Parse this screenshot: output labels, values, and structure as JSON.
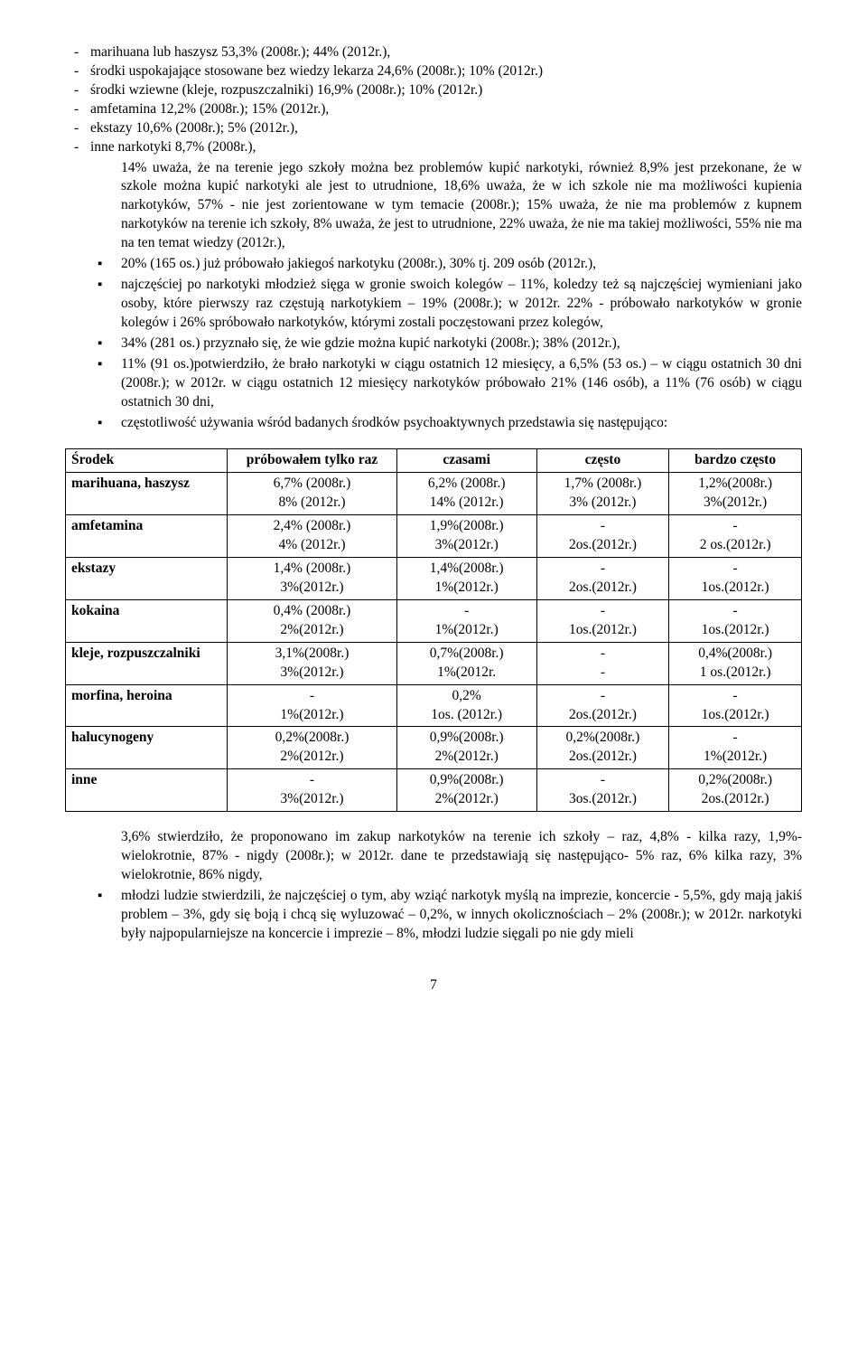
{
  "list1_sub": [
    "marihuana lub haszysz 53,3% (2008r.); 44% (2012r.),",
    "środki uspokajające stosowane bez wiedzy lekarza 24,6% (2008r.); 10% (2012r.)",
    "środki wziewne (kleje, rozpuszczalniki) 16,9% (2008r.); 10% (2012r.)",
    "amfetamina 12,2% (2008r.); 15% (2012r.),",
    "ekstazy 10,6% (2008r.); 5% (2012r.),",
    "inne narkotyki 8,7% (2008r.),"
  ],
  "list1_main": [
    "14% uważa, że na terenie jego szkoły można bez problemów kupić narkotyki, również 8,9% jest przekonane, że w szkole można kupić narkotyki ale jest to utrudnione, 18,6% uważa, że w ich szkole nie ma możliwości kupienia narkotyków, 57% - nie jest zorientowane w tym temacie (2008r.);  15% uważa, że nie ma problemów z kupnem narkotyków na terenie ich szkoły, 8% uważa, że jest to utrudnione, 22% uważa, że nie ma takiej możliwości, 55% nie ma na ten temat wiedzy (2012r.),",
    "20% (165 os.) już próbowało jakiegoś narkotyku (2008r.),  30% tj. 209 osób (2012r.),",
    "najczęściej po narkotyki młodzież sięga w gronie swoich kolegów – 11%, koledzy też są najczęściej wymieniani jako osoby, które pierwszy raz częstują narkotykiem – 19% (2008r.); w 2012r. 22% - próbowało narkotyków w gronie kolegów i 26% spróbowało narkotyków, którymi zostali poczęstowani przez kolegów,",
    "34% (281 os.) przyznało się, że wie gdzie można kupić narkotyki (2008r.); 38% (2012r.),",
    "11% (91 os.)potwierdziło, że brało narkotyki w ciągu ostatnich 12 miesięcy, a 6,5% (53 os.) – w ciągu ostatnich 30 dni (2008r.); w 2012r. w ciągu ostatnich 12 miesięcy narkotyków próbowało 21% (146 osób), a 11% (76 osób) w ciągu ostatnich 30 dni,",
    "częstotliwość używania wśród badanych środków psychoaktywnych przedstawia się następująco:"
  ],
  "table": {
    "headers": [
      "Środek",
      "próbowałem tylko raz",
      "czasami",
      "często",
      "bardzo często"
    ],
    "col_widths": [
      "22%",
      "23%",
      "19%",
      "18%",
      "18%"
    ],
    "rows": [
      {
        "label": "marihuana, haszysz",
        "c1": [
          "6,7% (2008r.)",
          "8% (2012r.)"
        ],
        "c2": [
          "6,2% (2008r.)",
          "14% (2012r.)"
        ],
        "c3": [
          "1,7% (2008r.)",
          "3% (2012r.)"
        ],
        "c4": [
          "1,2%(2008r.)",
          "3%(2012r.)"
        ]
      },
      {
        "label": "amfetamina",
        "c1": [
          "2,4% (2008r.)",
          "4% (2012r.)"
        ],
        "c2": [
          "1,9%(2008r.)",
          "3%(2012r.)"
        ],
        "c3": [
          "-",
          "2os.(2012r.)"
        ],
        "c4": [
          "-",
          "2 os.(2012r.)"
        ]
      },
      {
        "label": "ekstazy",
        "c1": [
          "1,4% (2008r.)",
          "3%(2012r.)"
        ],
        "c2": [
          "1,4%(2008r.)",
          "1%(2012r.)"
        ],
        "c3": [
          "-",
          "2os.(2012r.)"
        ],
        "c4": [
          "-",
          "1os.(2012r.)"
        ]
      },
      {
        "label": "kokaina",
        "c1": [
          "0,4% (2008r.)",
          "2%(2012r.)"
        ],
        "c2": [
          "-",
          "1%(2012r.)"
        ],
        "c3": [
          "-",
          "1os.(2012r.)"
        ],
        "c4": [
          "-",
          "1os.(2012r.)"
        ]
      },
      {
        "label": "kleje, rozpuszczalniki",
        "c1": [
          "3,1%(2008r.)",
          "3%(2012r.)"
        ],
        "c2": [
          "0,7%(2008r.)",
          "1%(2012r."
        ],
        "c3": [
          "-",
          "-"
        ],
        "c4": [
          "0,4%(2008r.)",
          "1 os.(2012r.)"
        ]
      },
      {
        "label": "morfina, heroina",
        "c1": [
          "-",
          "1%(2012r.)"
        ],
        "c2": [
          "0,2%",
          "1os. (2012r.)"
        ],
        "c3": [
          "-",
          "2os.(2012r.)"
        ],
        "c4": [
          "-",
          "1os.(2012r.)"
        ]
      },
      {
        "label": "halucynogeny",
        "c1": [
          "0,2%(2008r.)",
          "2%(2012r.)"
        ],
        "c2": [
          "0,9%(2008r.)",
          "2%(2012r.)"
        ],
        "c3": [
          "0,2%(2008r.)",
          "2os.(2012r.)"
        ],
        "c4": [
          "-",
          "1%(2012r.)"
        ]
      },
      {
        "label": "inne",
        "c1": [
          "-",
          "3%(2012r.)"
        ],
        "c2": [
          "0,9%(2008r.)",
          "2%(2012r.)"
        ],
        "c3": [
          "-",
          "3os.(2012r.)"
        ],
        "c4": [
          "0,2%(2008r.)",
          "2os.(2012r.)"
        ]
      }
    ]
  },
  "list2": [
    "3,6% stwierdziło, że proponowano im zakup narkotyków na terenie ich szkoły – raz, 4,8% - kilka razy, 1,9%- wielokrotnie, 87% - nigdy (2008r.);  w 2012r. dane te przedstawiają się następująco- 5% raz, 6% kilka razy, 3% wielokrotnie, 86% nigdy,",
    "młodzi ludzie stwierdzili, że najczęściej o tym, aby wziąć narkotyk myślą na imprezie, koncercie - 5,5%, gdy mają jakiś problem – 3%, gdy się boją i chcą się wyluzować – 0,2%, w innych okolicznościach – 2% (2008r.); w 2012r. narkotyki były najpopularniejsze na koncercie i imprezie – 8%, młodzi ludzie sięgali po nie gdy mieli"
  ],
  "page_number": "7"
}
